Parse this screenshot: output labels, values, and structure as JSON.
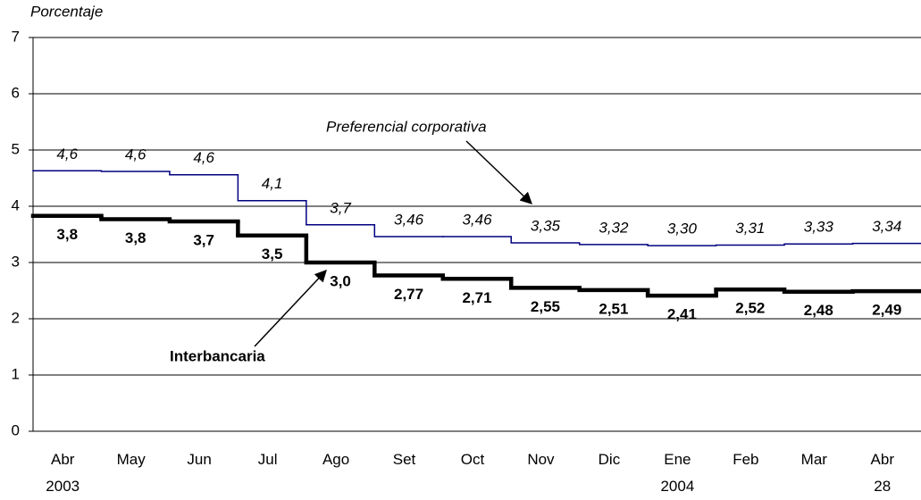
{
  "chart_data": {
    "type": "step",
    "y_label": "Porcentaje",
    "categories": [
      "Abr\n2003",
      "May",
      "Jun",
      "Jul",
      "Ago",
      "Set",
      "Oct",
      "Nov",
      "Dic",
      "Ene\n2004",
      "Feb",
      "Mar",
      "Abr\n28"
    ],
    "series": [
      {
        "name": "Preferencial corporativa",
        "color": "#000080",
        "values": [
          4.63,
          4.62,
          4.56,
          4.1,
          3.67,
          3.46,
          3.46,
          3.35,
          3.32,
          3.3,
          3.31,
          3.33,
          3.34
        ],
        "value_labels": [
          "4,6",
          "4,6",
          "4,6",
          "4,1",
          "3,7",
          "3,46",
          "3,46",
          "3,35",
          "3,32",
          "3,30",
          "3,31",
          "3,33",
          "3,34"
        ]
      },
      {
        "name": "Interbancaria",
        "color": "#000000",
        "values": [
          3.83,
          3.77,
          3.73,
          3.48,
          3.0,
          2.77,
          2.71,
          2.55,
          2.51,
          2.41,
          2.52,
          2.48,
          2.49
        ],
        "value_labels": [
          "3,8",
          "3,8",
          "3,7",
          "3,5",
          "3,0",
          "2,77",
          "2,71",
          "2,55",
          "2,51",
          "2,41",
          "2,52",
          "2,48",
          "2,49"
        ]
      }
    ],
    "ylim": [
      0,
      7
    ],
    "yticks": [
      0,
      1,
      2,
      3,
      4,
      5,
      6,
      7
    ],
    "grid": true
  }
}
